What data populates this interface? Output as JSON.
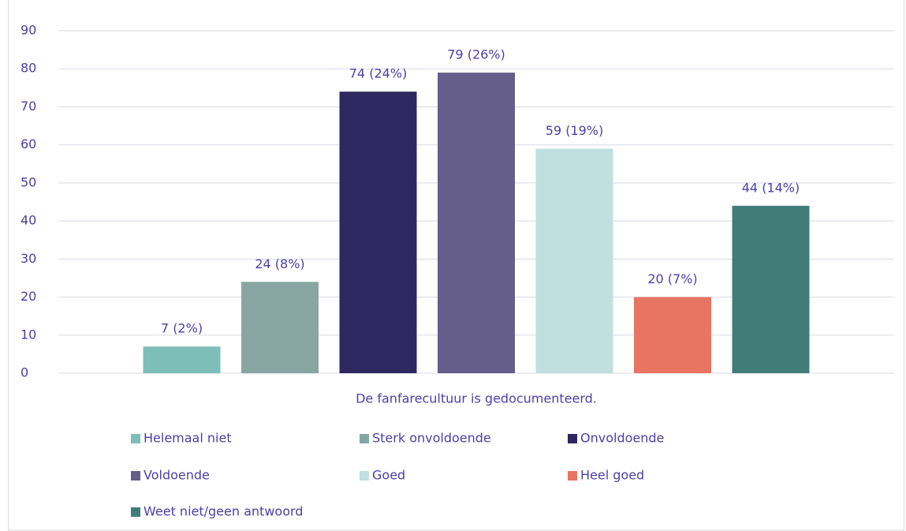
{
  "chart_data": {
    "type": "bar",
    "categories": [
      "De fanfarecultuur is gedocumenteerd."
    ],
    "series": [
      {
        "name": "Helemaal niet",
        "color": "#7dbfb8",
        "values": [
          7
        ],
        "value_labels": [
          "7 (2%)"
        ]
      },
      {
        "name": "Sterk onvoldoende",
        "color": "#88a6a1",
        "values": [
          24
        ],
        "value_labels": [
          "24 (8%)"
        ]
      },
      {
        "name": "Onvoldoende",
        "color": "#2f2860",
        "values": [
          74
        ],
        "value_labels": [
          "74 (24%)"
        ]
      },
      {
        "name": "Voldoende",
        "color": "#665e8a",
        "values": [
          79
        ],
        "value_labels": [
          "79 (26%)"
        ]
      },
      {
        "name": "Goed",
        "color": "#bfe0de",
        "values": [
          59
        ],
        "value_labels": [
          "59 (19%)"
        ]
      },
      {
        "name": "Heel goed",
        "color": "#e77562",
        "values": [
          20
        ],
        "value_labels": [
          "20 (7%)"
        ]
      },
      {
        "name": "Weet niet/geen antwoord",
        "color": "#417d78",
        "values": [
          44
        ],
        "value_labels": [
          "44 (14%)"
        ]
      }
    ],
    "ylim": [
      0,
      90
    ],
    "yticks": [
      0,
      10,
      20,
      30,
      40,
      50,
      60,
      70,
      80,
      90
    ],
    "grid": true,
    "legend": "bottom"
  }
}
